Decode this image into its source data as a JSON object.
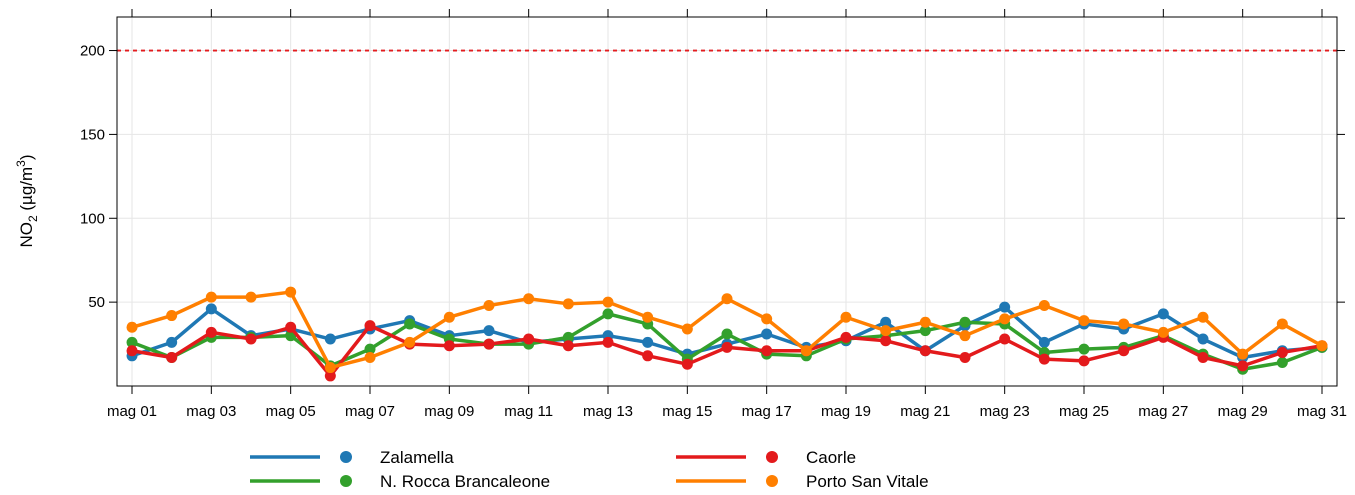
{
  "chart_data": {
    "type": "line",
    "title": "",
    "xlabel": "",
    "ylabel_main": "NO",
    "ylabel_sub": "2",
    "ylabel_unit_pre": " (µg/m",
    "ylabel_unit_sup": "3",
    "ylabel_unit_post": ")",
    "ylim": [
      0,
      220
    ],
    "yticks": [
      50,
      100,
      150,
      200
    ],
    "xlim": [
      1,
      31
    ],
    "x": [
      1,
      2,
      3,
      4,
      5,
      6,
      7,
      8,
      9,
      10,
      11,
      12,
      13,
      14,
      15,
      16,
      17,
      18,
      19,
      20,
      21,
      22,
      23,
      24,
      25,
      26,
      27,
      28,
      29,
      30,
      31
    ],
    "x_tick_values": [
      1,
      3,
      5,
      7,
      9,
      11,
      13,
      15,
      17,
      19,
      21,
      23,
      25,
      27,
      29,
      31
    ],
    "x_tick_labels": [
      "mag 01",
      "mag 03",
      "mag 05",
      "mag 07",
      "mag 09",
      "mag 11",
      "mag 13",
      "mag 15",
      "mag 17",
      "mag 19",
      "mag 21",
      "mag 23",
      "mag 25",
      "mag 27",
      "mag 29",
      "mag 31"
    ],
    "grid": true,
    "threshold": {
      "value": 200,
      "color": "#e31a1c",
      "style": "dashed"
    },
    "legend_position": "bottom",
    "series": [
      {
        "name": "Zalamella",
        "color": "#1f78b4",
        "values": [
          18,
          26,
          46,
          30,
          34,
          28,
          34,
          39,
          30,
          33,
          26,
          28,
          30,
          26,
          19,
          25,
          31,
          23,
          27,
          38,
          21,
          36,
          47,
          26,
          37,
          34,
          43,
          28,
          17,
          21,
          23
        ]
      },
      {
        "name": "N. Rocca Brancaleone",
        "color": "#33a02c",
        "values": [
          26,
          17,
          29,
          29,
          30,
          12,
          22,
          37,
          28,
          25,
          25,
          29,
          43,
          37,
          16,
          31,
          19,
          18,
          28,
          30,
          33,
          38,
          37,
          20,
          22,
          23,
          30,
          19,
          10,
          14,
          23
        ]
      },
      {
        "name": "Caorle",
        "color": "#e31a1c",
        "values": [
          21,
          17,
          32,
          28,
          35,
          6,
          36,
          25,
          24,
          25,
          28,
          24,
          26,
          18,
          13,
          23,
          21,
          21,
          29,
          27,
          21,
          17,
          28,
          16,
          15,
          21,
          29,
          17,
          12,
          20,
          24
        ]
      },
      {
        "name": "Porto San Vitale",
        "color": "#ff7f00",
        "values": [
          35,
          42,
          53,
          53,
          56,
          11,
          17,
          26,
          41,
          48,
          52,
          49,
          50,
          41,
          34,
          52,
          40,
          21,
          41,
          33,
          38,
          30,
          40,
          48,
          39,
          37,
          32,
          41,
          19,
          37,
          24
        ]
      }
    ]
  }
}
